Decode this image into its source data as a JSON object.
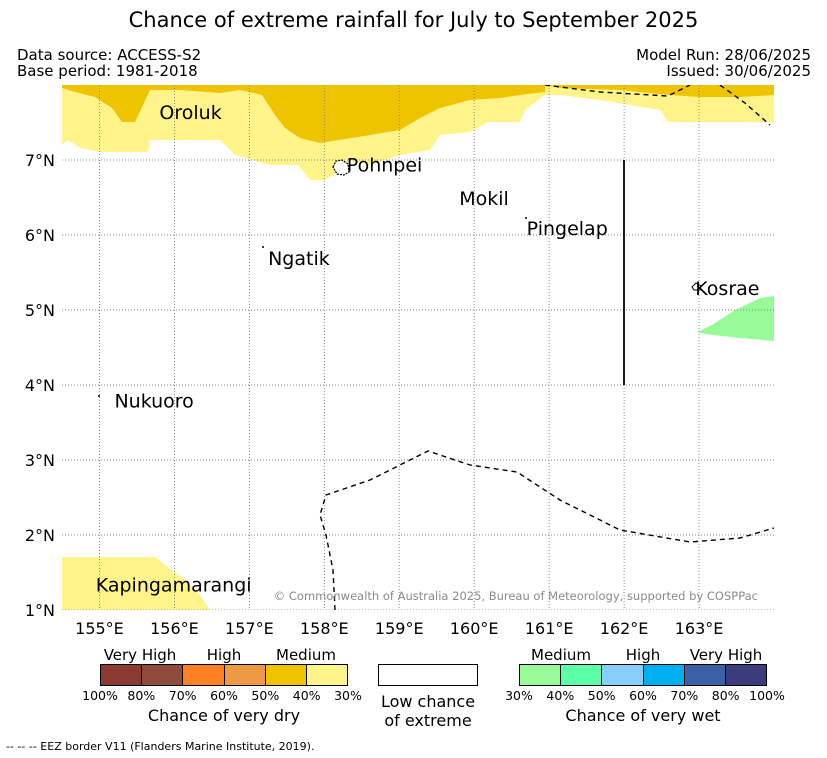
{
  "title": "Chance of extreme rainfall for July to September 2025",
  "meta": {
    "data_source": "Data source: ACCESS-S2",
    "base_period": "Base period: 1981-2018",
    "model_run": "Model Run: 28/06/2025",
    "issued": "Issued: 30/06/2025"
  },
  "map": {
    "lon_range": [
      154.5,
      164.0
    ],
    "lat_range": [
      1.0,
      8.0
    ],
    "x_ticks": [
      "155°E",
      "156°E",
      "157°E",
      "158°E",
      "159°E",
      "160°E",
      "161°E",
      "162°E",
      "163°E"
    ],
    "y_ticks": [
      "7°N",
      "6°N",
      "5°N",
      "4°N",
      "3°N",
      "2°N",
      "1°N"
    ],
    "copyright": "© Commonwealth of Australia 2025, Bureau of Meteorology, supported by COSPPac",
    "places": [
      {
        "name": "Oroluk",
        "lon": 155.8,
        "lat": 7.55
      },
      {
        "name": "Pohnpei",
        "lon": 158.3,
        "lat": 6.85
      },
      {
        "name": "Mokil",
        "lon": 159.8,
        "lat": 6.4
      },
      {
        "name": "Pingelap",
        "lon": 160.7,
        "lat": 6.0
      },
      {
        "name": "Ngatik",
        "lon": 157.25,
        "lat": 5.6
      },
      {
        "name": "Kosrae",
        "lon": 162.95,
        "lat": 5.2
      },
      {
        "name": "Nukuoro",
        "lon": 155.2,
        "lat": 3.7
      },
      {
        "name": "Kapingamarangi",
        "lon": 154.95,
        "lat": 1.25
      }
    ]
  },
  "legend": {
    "dry": {
      "headings": [
        "Very High",
        "High",
        "Medium"
      ],
      "colors": [
        "#8b3a32",
        "#8e4a3b",
        "#ff8022",
        "#ee9a45",
        "#eec400",
        "#fff48a"
      ],
      "ticks": [
        "100%",
        "80%",
        "70%",
        "60%",
        "50%",
        "40%",
        "30%"
      ],
      "caption": "Chance of very dry"
    },
    "low": {
      "caption_line1": "Low chance",
      "caption_line2": "of extreme"
    },
    "wet": {
      "headings": [
        "Medium",
        "High",
        "Very High"
      ],
      "colors": [
        "#98fb98",
        "#5cffa8",
        "#87cefa",
        "#00b0f0",
        "#3a60a6",
        "#3c3c7c"
      ],
      "ticks": [
        "30%",
        "40%",
        "50%",
        "60%",
        "70%",
        "80%",
        "100%"
      ],
      "caption": "Chance of very wet"
    }
  },
  "footer": "-- -- -- EEZ border V11 (Flanders Marine Institute, 2019)."
}
